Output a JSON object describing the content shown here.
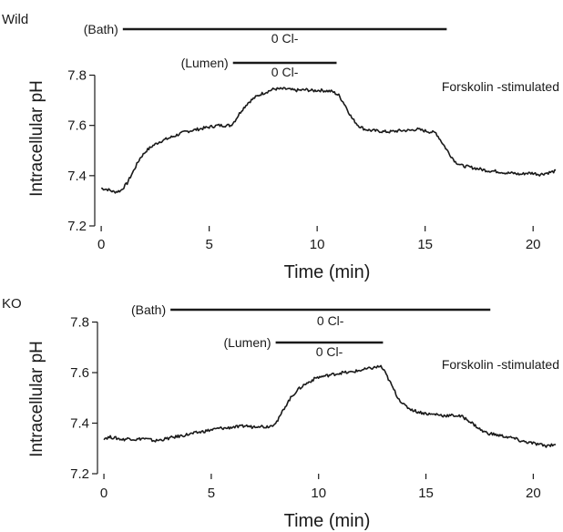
{
  "chart_data": [
    {
      "type": "line",
      "panel_label": "Wild",
      "xlabel": "Time (min)",
      "ylabel": "Intracellular pH",
      "xlim": [
        -0.3,
        21.3
      ],
      "ylim": [
        7.2,
        7.82
      ],
      "xticks": [
        0,
        5,
        10,
        15,
        20
      ],
      "yticks": [
        7.2,
        7.4,
        7.6,
        7.8
      ],
      "annotation": "Forskolin -stimulated",
      "bars": [
        {
          "label": "(Bath)",
          "text": "0 Cl-",
          "start": 1,
          "end": 16
        },
        {
          "label": "(Lumen)",
          "text": "0 Cl-",
          "start": 6.1,
          "end": 10.9
        }
      ],
      "x": [
        0,
        0.3,
        0.6,
        0.9,
        1.2,
        1.5,
        1.8,
        2.1,
        2.4,
        2.7,
        3,
        3.3,
        3.6,
        3.9,
        4.2,
        4.5,
        4.8,
        5.1,
        5.4,
        5.7,
        6,
        6.2,
        6.5,
        6.8,
        7.1,
        7.4,
        7.7,
        8,
        8.3,
        8.6,
        8.9,
        9.2,
        9.5,
        9.8,
        10.1,
        10.4,
        10.7,
        11,
        11.3,
        11.6,
        11.9,
        12.2,
        12.5,
        12.8,
        13.1,
        13.4,
        13.7,
        14,
        14.3,
        14.6,
        14.9,
        15.2,
        15.5,
        15.8,
        16.1,
        16.4,
        16.7,
        17,
        17.3,
        17.6,
        17.9,
        18.2,
        18.5,
        18.8,
        19.1,
        19.4,
        19.7,
        20,
        20.3,
        20.6,
        20.9,
        21.1
      ],
      "y": [
        7.35,
        7.345,
        7.335,
        7.34,
        7.37,
        7.42,
        7.47,
        7.5,
        7.52,
        7.535,
        7.545,
        7.555,
        7.565,
        7.575,
        7.58,
        7.585,
        7.59,
        7.595,
        7.6,
        7.6,
        7.6,
        7.62,
        7.66,
        7.69,
        7.71,
        7.725,
        7.735,
        7.745,
        7.745,
        7.745,
        7.74,
        7.74,
        7.742,
        7.738,
        7.74,
        7.738,
        7.735,
        7.72,
        7.68,
        7.63,
        7.6,
        7.585,
        7.58,
        7.578,
        7.575,
        7.575,
        7.578,
        7.58,
        7.58,
        7.585,
        7.58,
        7.575,
        7.57,
        7.53,
        7.49,
        7.455,
        7.44,
        7.435,
        7.43,
        7.425,
        7.42,
        7.418,
        7.415,
        7.41,
        7.41,
        7.405,
        7.41,
        7.41,
        7.405,
        7.41,
        7.415,
        7.42
      ]
    },
    {
      "type": "line",
      "panel_label": "KO",
      "xlabel": "Time (min)",
      "ylabel": "Intracellular pH",
      "xlim": [
        -0.3,
        21.3
      ],
      "ylim": [
        7.2,
        7.82
      ],
      "xticks": [
        0,
        5,
        10,
        15,
        20
      ],
      "yticks": [
        7.2,
        7.4,
        7.6,
        7.8
      ],
      "annotation": "Forskolin -stimulated",
      "bars": [
        {
          "label": "(Bath)",
          "text": "0 Cl-",
          "start": 3.1,
          "end": 18
        },
        {
          "label": "(Lumen)",
          "text": "0 Cl-",
          "start": 8,
          "end": 13
        }
      ],
      "x": [
        0,
        0.3,
        0.6,
        0.9,
        1.2,
        1.5,
        1.8,
        2.1,
        2.4,
        2.7,
        3,
        3.3,
        3.6,
        3.9,
        4.2,
        4.5,
        4.8,
        5.1,
        5.4,
        5.7,
        6,
        6.3,
        6.6,
        6.9,
        7.2,
        7.5,
        7.8,
        8.1,
        8.4,
        8.7,
        9,
        9.3,
        9.6,
        9.9,
        10.2,
        10.5,
        10.8,
        11.1,
        11.4,
        11.7,
        12,
        12.3,
        12.6,
        12.9,
        13.1,
        13.4,
        13.7,
        14,
        14.3,
        14.6,
        14.9,
        15.2,
        15.5,
        15.8,
        16.1,
        16.4,
        16.7,
        17,
        17.3,
        17.6,
        17.9,
        18.2,
        18.5,
        18.8,
        19.1,
        19.4,
        19.7,
        20,
        20.3,
        20.6,
        20.9,
        21.1
      ],
      "y": [
        7.34,
        7.345,
        7.34,
        7.335,
        7.34,
        7.335,
        7.34,
        7.335,
        7.33,
        7.335,
        7.34,
        7.345,
        7.35,
        7.355,
        7.36,
        7.365,
        7.37,
        7.375,
        7.38,
        7.38,
        7.385,
        7.385,
        7.39,
        7.385,
        7.39,
        7.385,
        7.39,
        7.41,
        7.46,
        7.5,
        7.53,
        7.55,
        7.565,
        7.58,
        7.585,
        7.59,
        7.595,
        7.6,
        7.6,
        7.605,
        7.61,
        7.615,
        7.62,
        7.625,
        7.6,
        7.55,
        7.5,
        7.47,
        7.455,
        7.445,
        7.44,
        7.435,
        7.435,
        7.43,
        7.43,
        7.43,
        7.425,
        7.41,
        7.39,
        7.37,
        7.36,
        7.355,
        7.35,
        7.345,
        7.34,
        7.33,
        7.325,
        7.32,
        7.315,
        7.31,
        7.315,
        7.32
      ]
    }
  ]
}
